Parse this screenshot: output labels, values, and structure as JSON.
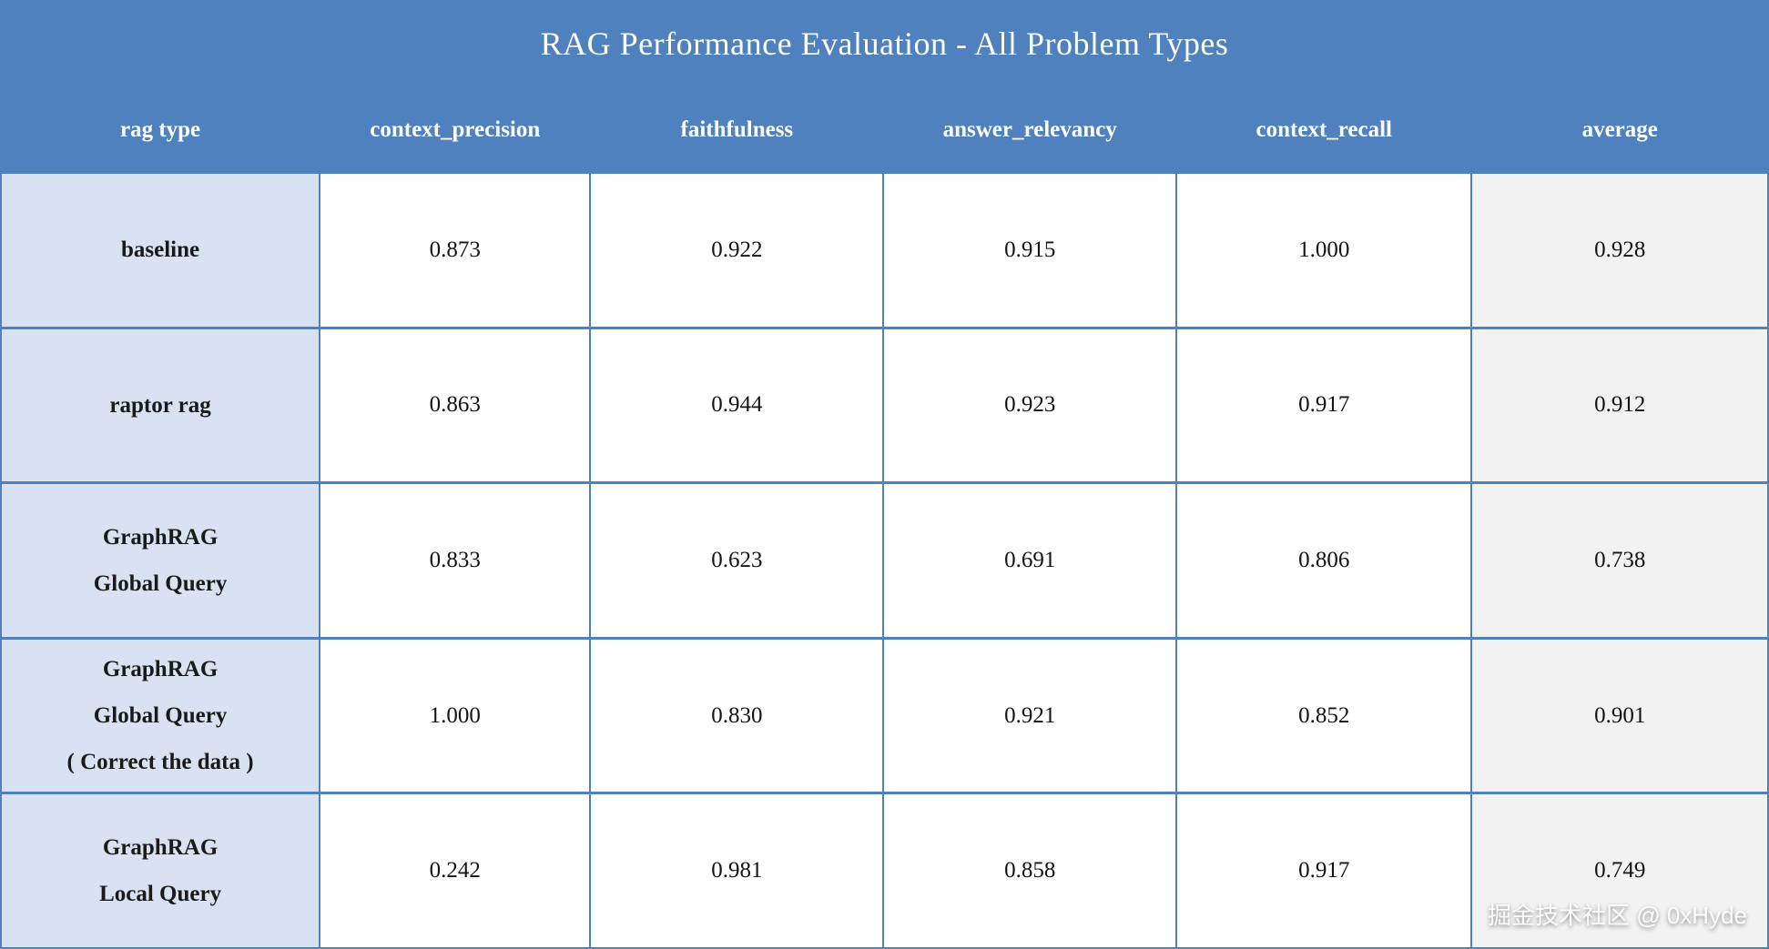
{
  "title": "RAG Performance Evaluation - All Problem Types",
  "watermark": "掘金技术社区 @ 0xHyde",
  "style": {
    "header_bg": "#4E81BD",
    "label_column_bg": "#D9E2F2",
    "average_column_bg": "#F2F2F2",
    "border_color": "#4E81BD",
    "header_text": "#FFFFFF"
  },
  "chart_data": {
    "type": "table",
    "title": "RAG Performance Evaluation - All Problem Types",
    "columns": [
      "rag type",
      "context_precision",
      "faithfulness",
      "answer_relevancy",
      "context_recall",
      "average"
    ],
    "rows": [
      {
        "label": "baseline",
        "label_lines": [
          "baseline"
        ],
        "values": [
          "0.873",
          "0.922",
          "0.915",
          "1.000",
          "0.928"
        ]
      },
      {
        "label": "raptor rag",
        "label_lines": [
          "raptor rag"
        ],
        "values": [
          "0.863",
          "0.944",
          "0.923",
          "0.917",
          "0.912"
        ]
      },
      {
        "label": "GraphRAG Global Query",
        "label_lines": [
          "GraphRAG",
          "Global Query"
        ],
        "values": [
          "0.833",
          "0.623",
          "0.691",
          "0.806",
          "0.738"
        ]
      },
      {
        "label": "GraphRAG Global Query ( Correct the data )",
        "label_lines": [
          "GraphRAG",
          "Global Query",
          "( Correct the data )"
        ],
        "values": [
          "1.000",
          "0.830",
          "0.921",
          "0.852",
          "0.901"
        ]
      },
      {
        "label": "GraphRAG Local Query",
        "label_lines": [
          "GraphRAG",
          "Local Query"
        ],
        "values": [
          "0.242",
          "0.981",
          "0.858",
          "0.917",
          "0.749"
        ]
      }
    ],
    "layout": {
      "grid": true,
      "legend": false,
      "value_range": [
        0,
        1
      ]
    }
  }
}
